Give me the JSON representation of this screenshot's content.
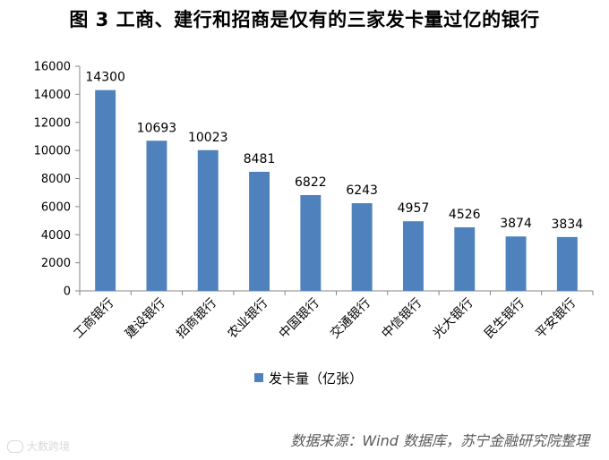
{
  "title": "图 3  工商、建行和招商是仅有的三家发卡量过亿的银行",
  "legend": {
    "label": "发卡量（亿张）",
    "color": "#4F81BD"
  },
  "source": "数据来源：Wind 数据库，苏宁金融研究院整理",
  "watermark": {
    "text": "大数跨境",
    "icon": "logo-mark-icon"
  },
  "chart_data": {
    "type": "bar",
    "categories": [
      "工商银行",
      "建设银行",
      "招商银行",
      "农业银行",
      "中国银行",
      "交通银行",
      "中信银行",
      "光大银行",
      "民生银行",
      "平安银行"
    ],
    "series": [
      {
        "name": "发卡量（亿张）",
        "values": [
          14300,
          10693,
          10023,
          8481,
          6822,
          6243,
          4957,
          4526,
          3874,
          3834
        ],
        "color": "#4F81BD"
      }
    ],
    "ylim": [
      0,
      16000
    ],
    "yticks": [
      0,
      2000,
      4000,
      6000,
      8000,
      10000,
      12000,
      14000,
      16000
    ],
    "data_labels": true,
    "grid": false,
    "legend_position": "bottom"
  }
}
